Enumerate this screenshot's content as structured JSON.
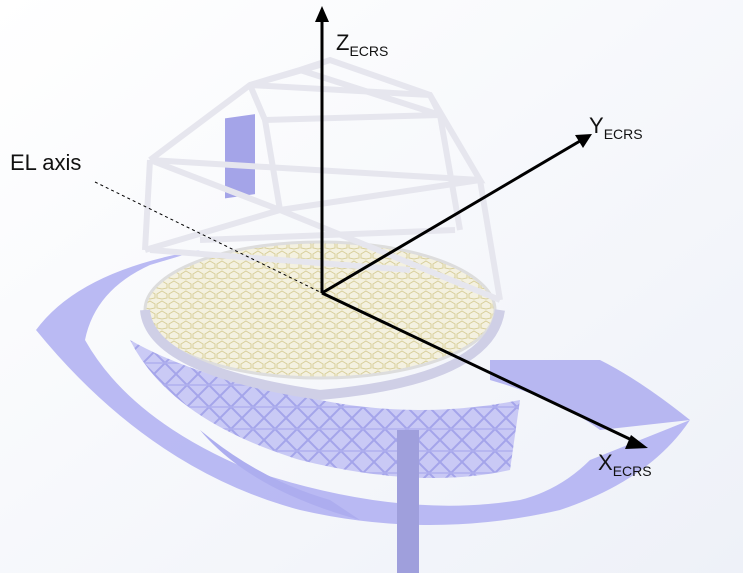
{
  "axes": [
    {
      "label": "Z",
      "subscript": "ECRS"
    },
    {
      "label": "Y",
      "subscript": "ECRS"
    },
    {
      "label": "X",
      "subscript": "ECRS"
    }
  ],
  "el_axis": {
    "label": "EL axis"
  }
}
